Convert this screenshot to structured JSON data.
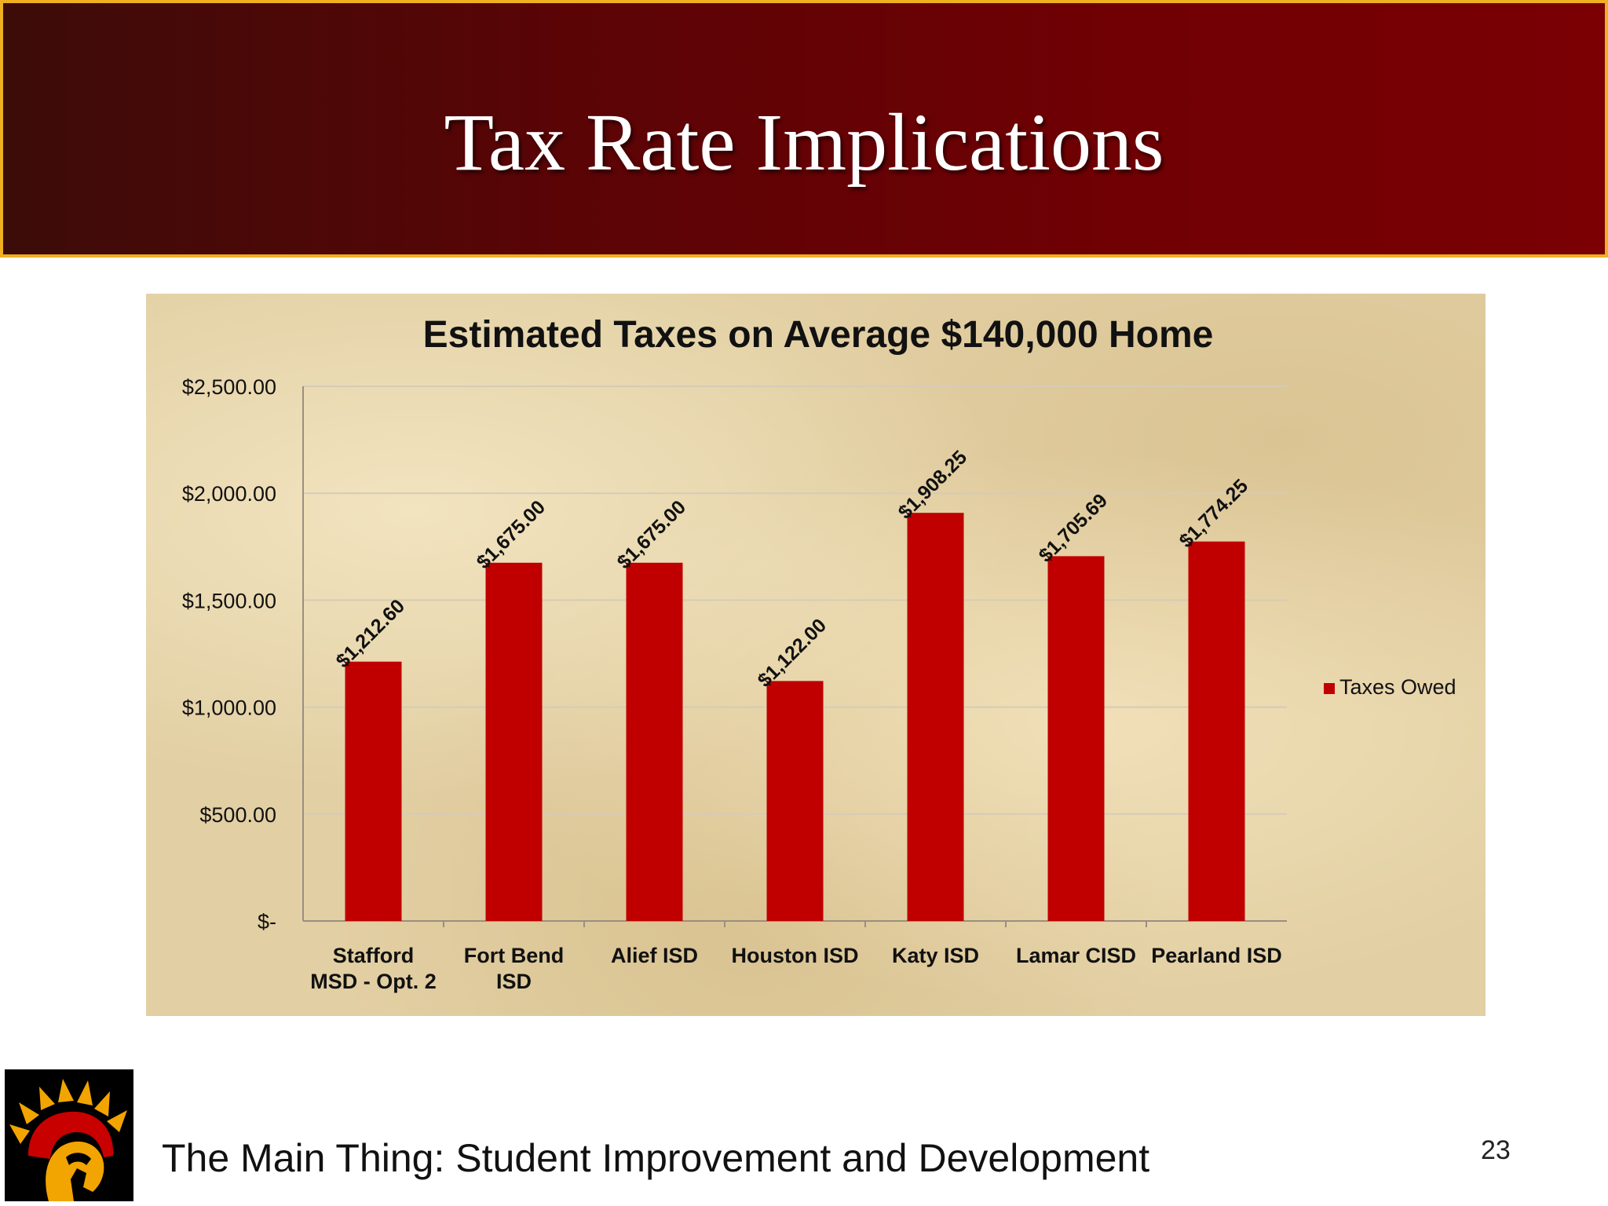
{
  "slide": {
    "title": "Tax Rate Implications",
    "footer": "The Main Thing:  Student Improvement and Development",
    "page_number": "23"
  },
  "colors": {
    "bar": "#c00000",
    "header_border": "#f0b020"
  },
  "chart_data": {
    "type": "bar",
    "title": "Estimated Taxes on Average $140,000 Home",
    "categories": [
      [
        "Stafford",
        "MSD - Opt. 2"
      ],
      [
        "Fort Bend",
        "ISD"
      ],
      [
        "Alief ISD"
      ],
      [
        "Houston ISD"
      ],
      [
        "Katy ISD"
      ],
      [
        "Lamar CISD"
      ],
      [
        "Pearland ISD"
      ]
    ],
    "series": [
      {
        "name": "Taxes Owed",
        "values": [
          1212.6,
          1675.0,
          1675.0,
          1122.0,
          1908.25,
          1705.69,
          1774.25
        ],
        "labels": [
          "$1,212.60",
          "$1,675.00",
          "$1,675.00",
          "$1,122.00",
          "$1,908.25",
          "$1,705.69",
          "$1,774.25"
        ]
      }
    ],
    "ylim": [
      0,
      2500
    ],
    "yticks": [
      0,
      500,
      1000,
      1500,
      2000,
      2500
    ],
    "ytick_labels": [
      "$-",
      "$500.00",
      "$1,000.00",
      "$1,500.00",
      "$2,000.00",
      "$2,500.00"
    ],
    "xlabel": "",
    "ylabel": "",
    "grid": true,
    "legend": "right"
  }
}
